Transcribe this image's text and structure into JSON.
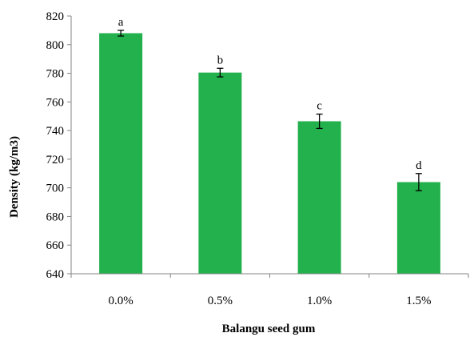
{
  "chart_data": {
    "type": "bar",
    "title": "",
    "xlabel": "Balangu seed gum",
    "ylabel": "Density (kg/m3)",
    "categories": [
      "0.0%",
      "0.5%",
      "1.0%",
      "1.5%"
    ],
    "values": [
      808,
      780.5,
      746.5,
      704
    ],
    "errors": [
      2,
      3,
      5,
      6
    ],
    "significance_labels": [
      "a",
      "b",
      "c",
      "d"
    ],
    "ylim": [
      640,
      820
    ],
    "yticks": [
      640,
      660,
      680,
      700,
      720,
      740,
      760,
      780,
      800,
      820
    ],
    "grid": false,
    "legend": "none",
    "bar_color": "#22b14c",
    "axis_color": "#868686"
  }
}
